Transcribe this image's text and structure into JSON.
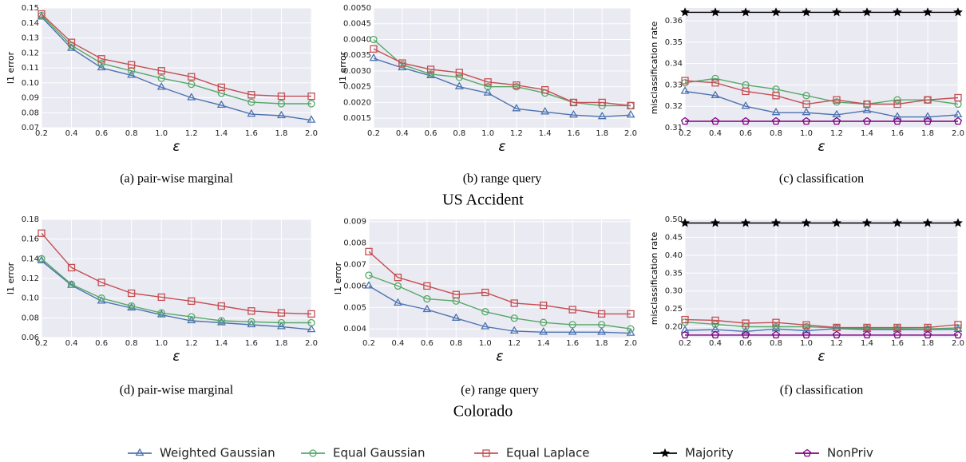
{
  "chart_data": [
    {
      "type": "line",
      "caption": "(a) pair-wise marginal",
      "xlabel": "ε",
      "ylabel": "l1 error",
      "x": [
        0.2,
        0.4,
        0.6,
        0.8,
        1.0,
        1.2,
        1.4,
        1.6,
        1.8,
        2.0
      ],
      "xlim": [
        0.2,
        2.0
      ],
      "xticks": [
        0.2,
        0.4,
        0.6,
        0.8,
        {
          "value": 1.0,
          "label": "1.0"
        },
        1.2,
        1.4,
        1.6,
        1.8,
        {
          "value": 2.0,
          "label": "2.0"
        }
      ],
      "ylim": [
        0.07,
        0.15
      ],
      "yticks": [
        0.07,
        0.08,
        0.09,
        {
          "value": 0.1,
          "label": "0.10"
        },
        0.11,
        0.12,
        0.13,
        0.14,
        0.15
      ],
      "grid": true,
      "series": [
        {
          "name": "Weighted Gaussian",
          "color": "#4c72b0",
          "marker": "triangle",
          "values": [
            0.144,
            0.123,
            0.11,
            0.105,
            0.097,
            0.09,
            0.085,
            0.079,
            0.078,
            0.075
          ]
        },
        {
          "name": "Equal Gaussian",
          "color": "#55a868",
          "marker": "circle",
          "values": [
            0.145,
            0.125,
            0.113,
            0.108,
            0.103,
            0.099,
            0.093,
            0.087,
            0.086,
            0.086
          ]
        },
        {
          "name": "Equal Laplace",
          "color": "#c44e52",
          "marker": "square",
          "values": [
            0.146,
            0.127,
            0.116,
            0.112,
            0.108,
            0.104,
            0.097,
            0.092,
            0.091,
            0.091
          ]
        }
      ]
    },
    {
      "type": "line",
      "caption": "(b) range query",
      "xlabel": "ε",
      "ylabel": "l1 error",
      "x": [
        0.2,
        0.4,
        0.6,
        0.8,
        1.0,
        1.2,
        1.4,
        1.6,
        1.8,
        2.0
      ],
      "xlim": [
        0.2,
        2.0
      ],
      "xticks": [
        0.2,
        0.4,
        0.6,
        0.8,
        {
          "value": 1.0,
          "label": "1.0"
        },
        1.2,
        1.4,
        1.6,
        1.8,
        {
          "value": 2.0,
          "label": "2.0"
        }
      ],
      "ylim": [
        0.0012,
        0.005
      ],
      "yticks": [
        0.0015,
        {
          "value": 0.002,
          "label": "0.0020"
        },
        0.0025,
        {
          "value": 0.003,
          "label": "0.0030"
        },
        0.0035,
        {
          "value": 0.004,
          "label": "0.0040"
        },
        0.0045,
        {
          "value": 0.005,
          "label": "0.0050"
        }
      ],
      "grid": true,
      "series": [
        {
          "name": "Weighted Gaussian",
          "color": "#4c72b0",
          "marker": "triangle",
          "values": [
            0.0034,
            0.0031,
            0.00285,
            0.0025,
            0.0023,
            0.0018,
            0.0017,
            0.0016,
            0.00155,
            0.0016
          ]
        },
        {
          "name": "Equal Gaussian",
          "color": "#55a868",
          "marker": "circle",
          "values": [
            0.004,
            0.0032,
            0.0029,
            0.0028,
            0.0025,
            0.0025,
            0.0023,
            0.002,
            0.0019,
            0.0019
          ]
        },
        {
          "name": "Equal Laplace",
          "color": "#c44e52",
          "marker": "square",
          "values": [
            0.0037,
            0.00325,
            0.00305,
            0.00295,
            0.00265,
            0.00255,
            0.0024,
            0.002,
            0.002,
            0.0019
          ]
        }
      ]
    },
    {
      "type": "line",
      "caption": "(c) classification",
      "xlabel": "ε",
      "ylabel": "misclassification rate",
      "x": [
        0.2,
        0.4,
        0.6,
        0.8,
        1.0,
        1.2,
        1.4,
        1.6,
        1.8,
        2.0
      ],
      "xlim": [
        0.2,
        2.0
      ],
      "xticks": [
        0.2,
        0.4,
        0.6,
        0.8,
        {
          "value": 1.0,
          "label": "1.0"
        },
        1.2,
        1.4,
        1.6,
        1.8,
        {
          "value": 2.0,
          "label": "2.0"
        }
      ],
      "ylim": [
        0.31,
        0.366
      ],
      "yticks": [
        0.31,
        0.32,
        0.33,
        0.34,
        0.35,
        0.36
      ],
      "grid": true,
      "series": [
        {
          "name": "Weighted Gaussian",
          "color": "#4c72b0",
          "marker": "triangle",
          "values": [
            0.327,
            0.325,
            0.32,
            0.317,
            0.317,
            0.316,
            0.318,
            0.315,
            0.315,
            0.316
          ]
        },
        {
          "name": "Equal Gaussian",
          "color": "#55a868",
          "marker": "circle",
          "values": [
            0.331,
            0.333,
            0.33,
            0.328,
            0.325,
            0.322,
            0.321,
            0.323,
            0.323,
            0.321
          ]
        },
        {
          "name": "Equal Laplace",
          "color": "#c44e52",
          "marker": "square",
          "values": [
            0.332,
            0.331,
            0.327,
            0.325,
            0.321,
            0.323,
            0.321,
            0.321,
            0.323,
            0.324
          ]
        },
        {
          "name": "Majority",
          "color": "#000000",
          "marker": "star",
          "values": [
            0.364,
            0.364,
            0.364,
            0.364,
            0.364,
            0.364,
            0.364,
            0.364,
            0.364,
            0.364
          ]
        },
        {
          "name": "NonPriv",
          "color": "#800080",
          "marker": "pentagon",
          "values": [
            0.313,
            0.313,
            0.313,
            0.313,
            0.313,
            0.313,
            0.313,
            0.313,
            0.313,
            0.313
          ]
        }
      ]
    },
    {
      "type": "line",
      "caption": "(d) pair-wise marginal",
      "xlabel": "ε",
      "ylabel": "l1 error",
      "x": [
        0.2,
        0.4,
        0.6,
        0.8,
        1.0,
        1.2,
        1.4,
        1.6,
        1.8,
        2.0
      ],
      "xlim": [
        0.2,
        2.0
      ],
      "xticks": [
        0.2,
        0.4,
        0.6,
        0.8,
        {
          "value": 1.0,
          "label": "1.0"
        },
        1.2,
        1.4,
        1.6,
        1.8,
        {
          "value": 2.0,
          "label": "2.0"
        }
      ],
      "ylim": [
        0.06,
        0.18
      ],
      "yticks": [
        0.06,
        0.08,
        {
          "value": 0.1,
          "label": "0.10"
        },
        0.12,
        0.14,
        0.16,
        0.18
      ],
      "grid": true,
      "series": [
        {
          "name": "Weighted Gaussian",
          "color": "#4c72b0",
          "marker": "triangle",
          "values": [
            0.138,
            0.113,
            0.097,
            0.09,
            0.083,
            0.077,
            0.075,
            0.073,
            0.071,
            0.068
          ]
        },
        {
          "name": "Equal Gaussian",
          "color": "#55a868",
          "marker": "circle",
          "values": [
            0.14,
            0.114,
            0.1,
            0.092,
            0.085,
            0.081,
            0.077,
            0.076,
            0.075,
            0.075
          ]
        },
        {
          "name": "Equal Laplace",
          "color": "#c44e52",
          "marker": "square",
          "values": [
            0.166,
            0.131,
            0.116,
            0.105,
            0.101,
            0.097,
            0.092,
            0.087,
            0.085,
            0.084
          ]
        }
      ]
    },
    {
      "type": "line",
      "caption": "(e) range query",
      "xlabel": "ε",
      "ylabel": "l1 error",
      "x": [
        0.2,
        0.4,
        0.6,
        0.8,
        1.0,
        1.2,
        1.4,
        1.6,
        1.8,
        2.0
      ],
      "xlim": [
        0.2,
        2.0
      ],
      "xticks": [
        0.2,
        0.4,
        0.6,
        0.8,
        {
          "value": 1.0,
          "label": "1.0"
        },
        1.2,
        1.4,
        1.6,
        1.8,
        {
          "value": 2.0,
          "label": "2.0"
        }
      ],
      "ylim": [
        0.0036,
        0.0091
      ],
      "yticks": [
        0.004,
        0.005,
        0.006,
        0.007,
        0.008,
        0.009
      ],
      "grid": true,
      "series": [
        {
          "name": "Weighted Gaussian",
          "color": "#4c72b0",
          "marker": "triangle",
          "values": [
            0.006,
            0.0052,
            0.0049,
            0.0045,
            0.0041,
            0.0039,
            0.00385,
            0.00385,
            0.00385,
            0.0038
          ]
        },
        {
          "name": "Equal Gaussian",
          "color": "#55a868",
          "marker": "circle",
          "values": [
            0.0065,
            0.006,
            0.0054,
            0.0053,
            0.0048,
            0.0045,
            0.0043,
            0.0042,
            0.0042,
            0.004
          ]
        },
        {
          "name": "Equal Laplace",
          "color": "#c44e52",
          "marker": "square",
          "values": [
            0.0076,
            0.0064,
            0.006,
            0.0056,
            0.0057,
            0.0052,
            0.0051,
            0.0049,
            0.0047,
            0.0047
          ]
        }
      ]
    },
    {
      "type": "line",
      "caption": "(f) classification",
      "xlabel": "ε",
      "ylabel": "misclassification rate",
      "x": [
        0.2,
        0.4,
        0.6,
        0.8,
        1.0,
        1.2,
        1.4,
        1.6,
        1.8,
        2.0
      ],
      "xlim": [
        0.2,
        2.0
      ],
      "xticks": [
        0.2,
        0.4,
        0.6,
        0.8,
        {
          "value": 1.0,
          "label": "1.0"
        },
        1.2,
        1.4,
        1.6,
        1.8,
        {
          "value": 2.0,
          "label": "2.0"
        }
      ],
      "ylim": [
        0.17,
        0.5
      ],
      "yticks": [
        {
          "value": 0.2,
          "label": "0.20"
        },
        0.25,
        {
          "value": 0.3,
          "label": "0.30"
        },
        0.35,
        {
          "value": 0.4,
          "label": "0.40"
        },
        0.45,
        {
          "value": 0.5,
          "label": "0.50"
        }
      ],
      "grid": true,
      "series": [
        {
          "name": "Weighted Gaussian",
          "color": "#4c72b0",
          "marker": "triangle",
          "values": [
            0.19,
            0.192,
            0.187,
            0.194,
            0.189,
            0.195,
            0.192,
            0.192,
            0.192,
            0.193
          ]
        },
        {
          "name": "Equal Gaussian",
          "color": "#55a868",
          "marker": "circle",
          "values": [
            0.213,
            0.207,
            0.2,
            0.2,
            0.2,
            0.197,
            0.195,
            0.195,
            0.194,
            0.197
          ]
        },
        {
          "name": "Equal Laplace",
          "color": "#c44e52",
          "marker": "square",
          "values": [
            0.22,
            0.218,
            0.21,
            0.212,
            0.205,
            0.198,
            0.198,
            0.198,
            0.198,
            0.206
          ]
        },
        {
          "name": "Majority",
          "color": "#000000",
          "marker": "star",
          "values": [
            0.49,
            0.49,
            0.49,
            0.49,
            0.49,
            0.49,
            0.49,
            0.49,
            0.49,
            0.49
          ]
        },
        {
          "name": "NonPriv",
          "color": "#800080",
          "marker": "pentagon",
          "values": [
            0.177,
            0.177,
            0.177,
            0.177,
            0.177,
            0.177,
            0.177,
            0.177,
            0.177,
            0.177
          ]
        }
      ]
    }
  ],
  "group_titles": [
    "US Accident",
    "Colorado"
  ]
}
